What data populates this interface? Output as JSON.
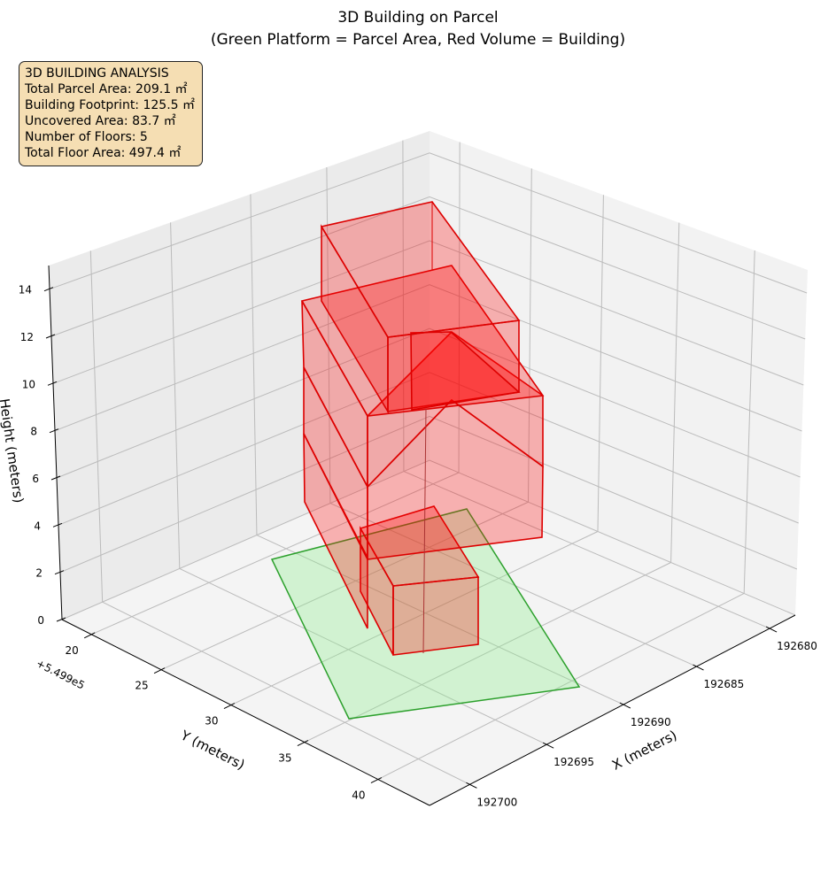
{
  "chart_data": {
    "type": "3d-polygons",
    "title": "3D Building on Parcel",
    "subtitle": "(Green Platform = Parcel Area, Red Volume = Building)",
    "xlabel": "X (meters)",
    "ylabel": "Y (meters)",
    "zlabel": "Height (meters)",
    "x_ticks": [
      "192680",
      "192685",
      "192690",
      "192695",
      "192700"
    ],
    "y_ticks": [
      "20",
      "25",
      "30",
      "35",
      "40"
    ],
    "y_offset": "+5.499e5",
    "z_ticks": [
      "0",
      "2",
      "4",
      "6",
      "8",
      "10",
      "12",
      "14"
    ],
    "zlim": [
      0,
      15
    ],
    "series": [
      {
        "name": "Parcel Area",
        "color": "#2ca02c",
        "fill": "#90ee90"
      },
      {
        "name": "Building",
        "color": "#ff0000",
        "fill": "#ff0000",
        "floors": 5
      }
    ],
    "annotation": {
      "lines": [
        "3D BUILDING ANALYSIS",
        "Total Parcel Area: 209.1 ㎡",
        "Building Footprint: 125.5 ㎡",
        "Uncovered Area: 83.7 ㎡",
        "Number of Floors: 5",
        "Total Floor Area: 497.4 ㎡"
      ],
      "background": "#f5deb3"
    }
  }
}
